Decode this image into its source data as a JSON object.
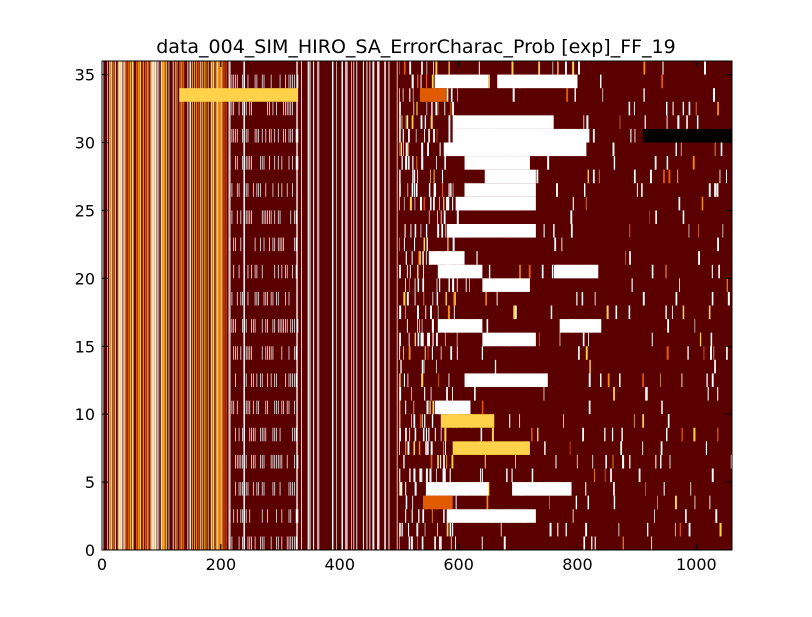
{
  "chart_data": {
    "type": "heatmap",
    "title": "data_004_SIM_HIRO_SA_ErrorCharac_Prob [exp]_FF_19",
    "xlabel": "",
    "ylabel": "",
    "xlim": [
      0,
      1060
    ],
    "ylim": [
      0,
      36
    ],
    "x_ticks": [
      0,
      200,
      400,
      600,
      800,
      1000
    ],
    "y_ticks": [
      0,
      5,
      10,
      15,
      20,
      25,
      30,
      35
    ],
    "x_tick_labels": [
      "0",
      "200",
      "400",
      "600",
      "800",
      "1000"
    ],
    "y_tick_labels": [
      "0",
      "5",
      "10",
      "15",
      "20",
      "25",
      "30",
      "35"
    ],
    "grid": false,
    "legend": "none",
    "colormap": "afmhot",
    "colors": {
      "background": "#5a0000",
      "dark": "#000000",
      "orange": "#e05a00",
      "amber": "#f08c10",
      "yellow": "#ffd24a",
      "white": "#ffffff"
    },
    "rows": 36,
    "columns": 1060,
    "column_bands": [
      {
        "x": [
          0,
          210
        ],
        "pattern": "dense vertical stripes",
        "dominant": [
          "dark red",
          "orange",
          "yellow",
          "white"
        ]
      },
      {
        "x": [
          210,
          330
        ],
        "pattern": "white vertical stripes with alternating horizontal rows",
        "dominant": [
          "dark red",
          "white"
        ]
      },
      {
        "x": [
          330,
          500
        ],
        "pattern": "dense vertical stripes",
        "dominant": [
          "dark red",
          "white"
        ]
      },
      {
        "x": [
          500,
          1060
        ],
        "pattern": "sparse row-wise segments",
        "dominant": [
          "dark red",
          "white",
          "yellow",
          "black"
        ]
      }
    ],
    "row_segments": [
      {
        "row": 34,
        "x": [
          560,
          650
        ],
        "value": "white"
      },
      {
        "row": 34,
        "x": [
          665,
          800
        ],
        "value": "white"
      },
      {
        "row": 33,
        "x": [
          535,
          580
        ],
        "value": "orange"
      },
      {
        "row": 33,
        "x": [
          130,
          330
        ],
        "value": "yellow"
      },
      {
        "row": 31,
        "x": [
          590,
          760
        ],
        "value": "white"
      },
      {
        "row": 30,
        "x": [
          590,
          820
        ],
        "value": "white"
      },
      {
        "row": 30,
        "x": [
          910,
          1060
        ],
        "value": "black"
      },
      {
        "row": 29,
        "x": [
          575,
          815
        ],
        "value": "white"
      },
      {
        "row": 28,
        "x": [
          610,
          720
        ],
        "value": "white"
      },
      {
        "row": 27,
        "x": [
          645,
          730
        ],
        "value": "white"
      },
      {
        "row": 26,
        "x": [
          610,
          730
        ],
        "value": "white"
      },
      {
        "row": 25,
        "x": [
          595,
          730
        ],
        "value": "white"
      },
      {
        "row": 23,
        "x": [
          580,
          730
        ],
        "value": "white"
      },
      {
        "row": 21,
        "x": [
          550,
          610
        ],
        "value": "white"
      },
      {
        "row": 20,
        "x": [
          565,
          640
        ],
        "value": "white"
      },
      {
        "row": 20,
        "x": [
          760,
          835
        ],
        "value": "white"
      },
      {
        "row": 19,
        "x": [
          640,
          720
        ],
        "value": "white"
      },
      {
        "row": 16,
        "x": [
          565,
          640
        ],
        "value": "white"
      },
      {
        "row": 16,
        "x": [
          770,
          840
        ],
        "value": "white"
      },
      {
        "row": 15,
        "x": [
          640,
          730
        ],
        "value": "white"
      },
      {
        "row": 12,
        "x": [
          610,
          750
        ],
        "value": "white"
      },
      {
        "row": 10,
        "x": [
          560,
          620
        ],
        "value": "white"
      },
      {
        "row": 9,
        "x": [
          570,
          660
        ],
        "value": "yellow"
      },
      {
        "row": 7,
        "x": [
          590,
          720
        ],
        "value": "yellow"
      },
      {
        "row": 4,
        "x": [
          545,
          650
        ],
        "value": "white"
      },
      {
        "row": 4,
        "x": [
          690,
          790
        ],
        "value": "white"
      },
      {
        "row": 3,
        "x": [
          540,
          590
        ],
        "value": "orange"
      },
      {
        "row": 2,
        "x": [
          580,
          730
        ],
        "value": "white"
      }
    ]
  }
}
